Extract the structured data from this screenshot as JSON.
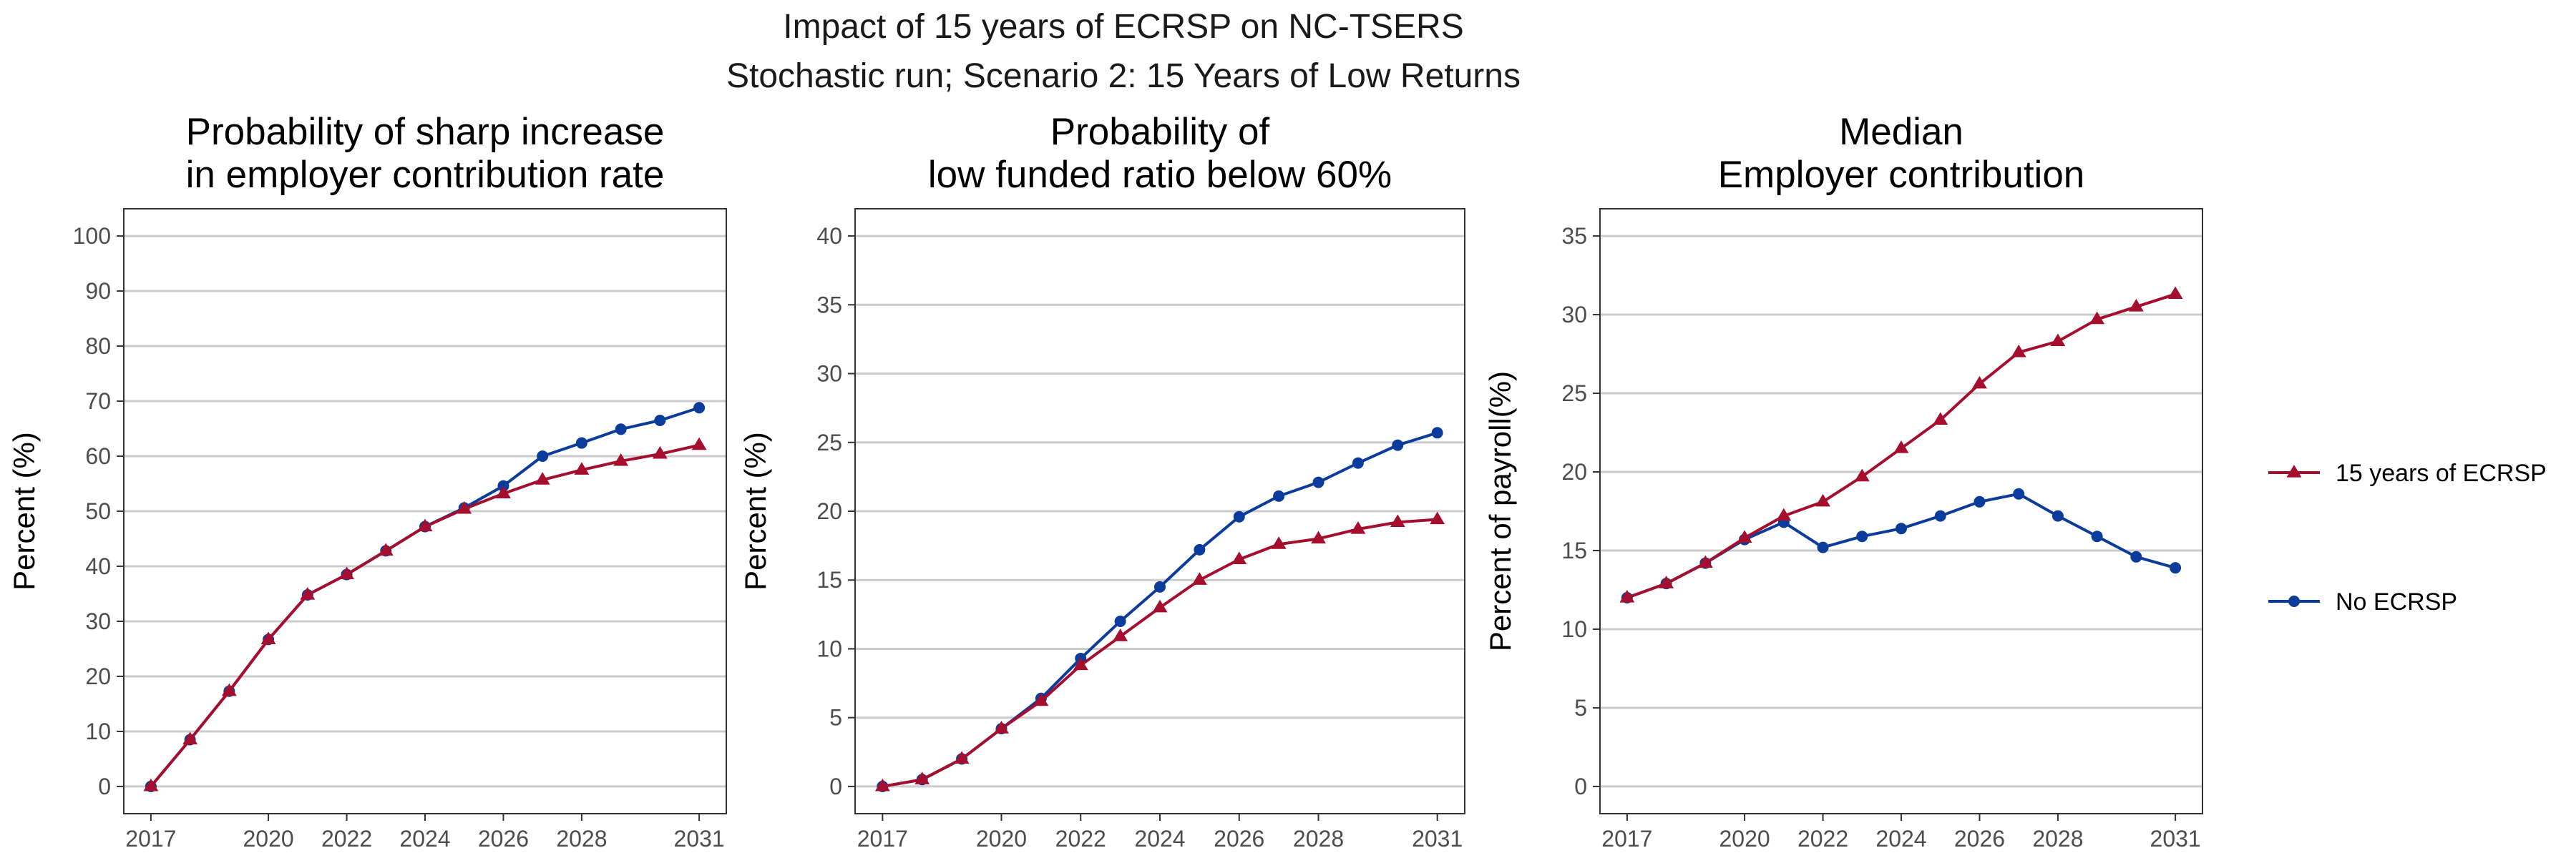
{
  "figure": {
    "title": "Impact of 15 years of ECRSP on NC-TSERS",
    "subtitle": "Stochastic run; Scenario 2: 15 Years of Low Returns"
  },
  "legend": {
    "position": "right",
    "entries": [
      {
        "name": "15 years of ECRSP",
        "color": "#A50F2D",
        "marker": "triangle"
      },
      {
        "name": "No ECRSP",
        "color": "#0B3C9C",
        "marker": "circle"
      }
    ]
  },
  "chart_data": [
    {
      "type": "line",
      "title_lines": [
        "Probability of sharp increase",
        "in employer contribution rate"
      ],
      "ylabel": "Percent (%)",
      "xlabel": "",
      "xlim": [
        2017,
        2031
      ],
      "xticks": [
        2017,
        2020,
        2022,
        2024,
        2026,
        2028,
        2031
      ],
      "ylim": [
        0,
        100
      ],
      "yticks": [
        0,
        10,
        20,
        30,
        40,
        50,
        60,
        70,
        80,
        90,
        100
      ],
      "grid": true,
      "x": [
        2017,
        2018,
        2019,
        2020,
        2021,
        2022,
        2023,
        2024,
        2025,
        2026,
        2027,
        2028,
        2029,
        2030,
        2031
      ],
      "series": [
        {
          "name": "15 years of ECRSP",
          "values": [
            0,
            8.5,
            17.3,
            26.7,
            34.8,
            38.5,
            42.8,
            47.2,
            50.4,
            53.2,
            55.7,
            57.5,
            59.1,
            60.4,
            62.0
          ]
        },
        {
          "name": "No ECRSP",
          "values": [
            0,
            8.5,
            17.3,
            26.7,
            34.8,
            38.5,
            42.8,
            47.2,
            50.6,
            54.6,
            60.0,
            62.4,
            64.9,
            66.5,
            68.8
          ]
        }
      ]
    },
    {
      "type": "line",
      "title_lines": [
        "Probability of",
        "low funded ratio below 60%"
      ],
      "ylabel": "Percent (%)",
      "xlabel": "",
      "xlim": [
        2017,
        2031
      ],
      "xticks": [
        2017,
        2020,
        2022,
        2024,
        2026,
        2028,
        2031
      ],
      "ylim": [
        0,
        40
      ],
      "yticks": [
        0,
        5,
        10,
        15,
        20,
        25,
        30,
        35,
        40
      ],
      "grid": true,
      "x": [
        2017,
        2018,
        2019,
        2020,
        2021,
        2022,
        2023,
        2024,
        2025,
        2026,
        2027,
        2028,
        2029,
        2030,
        2031
      ],
      "series": [
        {
          "name": "15 years of ECRSP",
          "values": [
            0,
            0.5,
            2.0,
            4.2,
            6.2,
            8.8,
            10.9,
            13.0,
            15.0,
            16.5,
            17.6,
            18.0,
            18.7,
            19.2,
            19.4
          ]
        },
        {
          "name": "No ECRSP",
          "values": [
            0,
            0.5,
            2.0,
            4.2,
            6.4,
            9.3,
            12.0,
            14.5,
            17.2,
            19.6,
            21.1,
            22.1,
            23.5,
            24.8,
            25.7
          ]
        }
      ]
    },
    {
      "type": "line",
      "title_lines": [
        "Median",
        "Employer contribution"
      ],
      "ylabel": "Percent of payroll(%)",
      "xlabel": "",
      "xlim": [
        2017,
        2031
      ],
      "xticks": [
        2017,
        2020,
        2022,
        2024,
        2026,
        2028,
        2031
      ],
      "ylim": [
        0,
        35
      ],
      "yticks": [
        0,
        5,
        10,
        15,
        20,
        25,
        30,
        35
      ],
      "grid": true,
      "x": [
        2017,
        2018,
        2019,
        2020,
        2021,
        2022,
        2023,
        2024,
        2025,
        2026,
        2027,
        2028,
        2029,
        2030,
        2031
      ],
      "series": [
        {
          "name": "15 years of ECRSP",
          "values": [
            12.0,
            12.9,
            14.2,
            15.8,
            17.2,
            18.1,
            19.7,
            21.5,
            23.3,
            25.6,
            27.6,
            28.3,
            29.7,
            30.5,
            31.3
          ]
        },
        {
          "name": "No ECRSP",
          "values": [
            12.0,
            12.9,
            14.2,
            15.7,
            16.8,
            15.2,
            15.9,
            16.4,
            17.2,
            18.1,
            18.6,
            17.2,
            15.9,
            14.6,
            13.9
          ]
        }
      ]
    }
  ]
}
